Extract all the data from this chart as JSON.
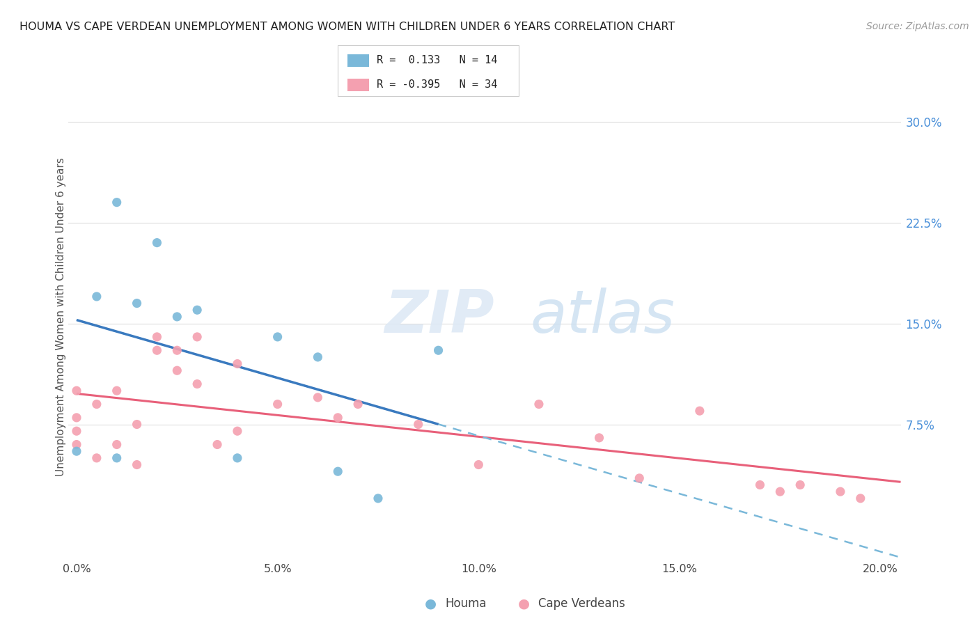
{
  "title": "HOUMA VS CAPE VERDEAN UNEMPLOYMENT AMONG WOMEN WITH CHILDREN UNDER 6 YEARS CORRELATION CHART",
  "source_text": "Source: ZipAtlas.com",
  "ylabel": "Unemployment Among Women with Children Under 6 years",
  "xlim": [
    -0.002,
    0.205
  ],
  "ylim": [
    -0.025,
    0.335
  ],
  "xtick_labels": [
    "0.0%",
    "5.0%",
    "10.0%",
    "15.0%",
    "20.0%"
  ],
  "xtick_values": [
    0.0,
    0.05,
    0.1,
    0.15,
    0.2
  ],
  "ytick_labels": [
    "7.5%",
    "15.0%",
    "22.5%",
    "30.0%"
  ],
  "ytick_values": [
    0.075,
    0.15,
    0.225,
    0.3
  ],
  "houma_color": "#7ab8d9",
  "cape_verdean_color": "#f4a0b0",
  "houma_line_color": "#3a7abf",
  "houma_dashed_color": "#7ab8d9",
  "cape_verdean_line_color": "#e8607a",
  "legend_r_houma": "0.133",
  "legend_n_houma": "14",
  "legend_r_cape": "-0.395",
  "legend_n_cape": "34",
  "watermark_zip": "ZIP",
  "watermark_atlas": "atlas",
  "houma_scatter_x": [
    0.0,
    0.005,
    0.01,
    0.01,
    0.015,
    0.02,
    0.025,
    0.03,
    0.04,
    0.05,
    0.06,
    0.065,
    0.075,
    0.09
  ],
  "houma_scatter_y": [
    0.055,
    0.17,
    0.05,
    0.24,
    0.165,
    0.21,
    0.155,
    0.16,
    0.05,
    0.14,
    0.125,
    0.04,
    0.02,
    0.13
  ],
  "cape_scatter_x": [
    0.0,
    0.0,
    0.0,
    0.0,
    0.005,
    0.005,
    0.01,
    0.01,
    0.015,
    0.015,
    0.02,
    0.02,
    0.025,
    0.025,
    0.03,
    0.03,
    0.035,
    0.04,
    0.04,
    0.05,
    0.06,
    0.065,
    0.07,
    0.085,
    0.1,
    0.115,
    0.13,
    0.14,
    0.155,
    0.17,
    0.175,
    0.18,
    0.19,
    0.195
  ],
  "cape_scatter_y": [
    0.06,
    0.07,
    0.08,
    0.1,
    0.05,
    0.09,
    0.06,
    0.1,
    0.045,
    0.075,
    0.13,
    0.14,
    0.115,
    0.13,
    0.105,
    0.14,
    0.06,
    0.07,
    0.12,
    0.09,
    0.095,
    0.08,
    0.09,
    0.075,
    0.045,
    0.09,
    0.065,
    0.035,
    0.085,
    0.03,
    0.025,
    0.03,
    0.025,
    0.02
  ]
}
